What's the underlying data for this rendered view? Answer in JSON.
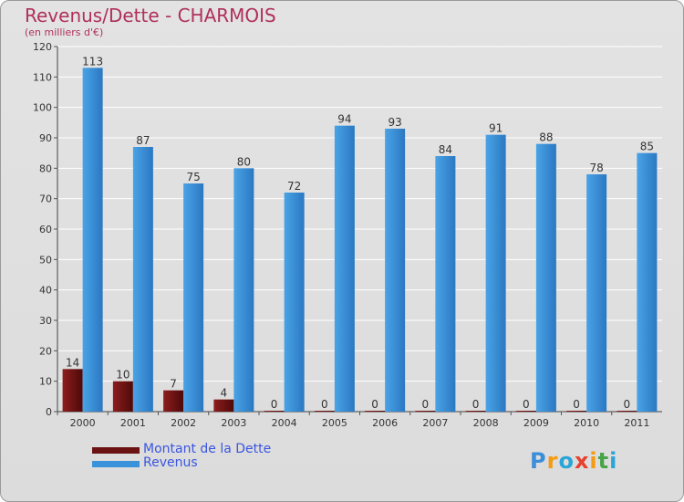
{
  "title": "Revenus/Dette - CHARMOIS",
  "subtitle": "(en milliers d'€)",
  "logo": {
    "text": "Proxiti",
    "letters": [
      "P",
      "r",
      "o",
      "x",
      "i",
      "t",
      "i"
    ],
    "colors": [
      "#3b8fd9",
      "#f39c12",
      "#2aa5d8",
      "#e8402f",
      "#f39c12",
      "#47a447",
      "#2aa5d8"
    ]
  },
  "legend": [
    {
      "label": "Montant de la Dette",
      "color": "#6b1212"
    },
    {
      "label": "Revenus",
      "color": "#3a92da"
    }
  ],
  "chart_data": {
    "type": "bar",
    "title": "Revenus/Dette - CHARMOIS",
    "ylabel": "(en milliers d'€)",
    "xlabel": "",
    "ylim": [
      0,
      120
    ],
    "yticks": [
      0,
      10,
      20,
      30,
      40,
      50,
      60,
      70,
      80,
      90,
      100,
      110,
      120
    ],
    "categories": [
      "2000",
      "2001",
      "2002",
      "2003",
      "2004",
      "2005",
      "2006",
      "2007",
      "2008",
      "2009",
      "2010",
      "2011"
    ],
    "series": [
      {
        "name": "Montant de la Dette",
        "color": "#6b1212",
        "values": [
          14,
          10,
          7,
          4,
          0,
          0,
          0,
          0,
          0,
          0,
          0,
          0
        ]
      },
      {
        "name": "Revenus",
        "color": "#3a92da",
        "values": [
          113,
          87,
          75,
          80,
          72,
          94,
          93,
          84,
          91,
          88,
          78,
          85
        ]
      }
    ],
    "legend_position": "bottom-left",
    "grid": true
  }
}
